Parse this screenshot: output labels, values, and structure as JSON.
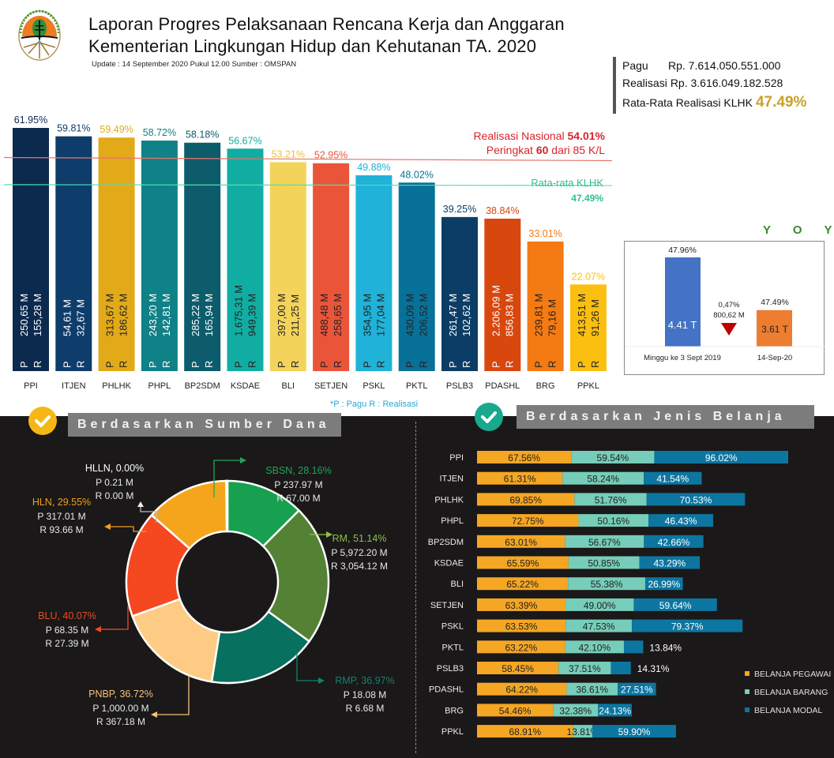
{
  "header": {
    "title_line1": "Laporan Progres Pelaksanaan Rencana Kerja dan Anggaran",
    "title_line2": "Kementerian Lingkungan Hidup dan Kehutanan TA. 2020",
    "update": "Update : 14 September 2020 Pukul 12.00  Sumber : OMSPAN",
    "logo": "klhk-logo-icon"
  },
  "summary": {
    "pagu_label": "Pagu",
    "pagu_value": "Rp. 7.614.050.551.000",
    "realisasi_label": "Realisasi",
    "realisasi_value": "Rp. 3.616.049.182.528",
    "avg_label": "Rata-Rata Realisasi KLHK",
    "avg_value": "47.49%"
  },
  "colors": {
    "national_line": "#e8766a",
    "klhk_line": "#4fe0b0",
    "dark_bg": "#1a1818",
    "pegawai": "#f5a623",
    "barang": "#76cdb9",
    "modal": "#0d76a0"
  },
  "chart_data": [
    {
      "id": "realisasi-per-eselon",
      "type": "bar",
      "title": "",
      "categories": [
        "PPI",
        "ITJEN",
        "PHLHK",
        "PHPL",
        "BP2SDM",
        "KSDAE",
        "BLI",
        "SETJEN",
        "PSKL",
        "PKTL",
        "PSLB3",
        "PDASHL",
        "BRG",
        "PPKL"
      ],
      "values": [
        61.95,
        59.81,
        59.49,
        58.72,
        58.18,
        56.67,
        53.21,
        52.95,
        49.88,
        48.02,
        39.25,
        38.84,
        33.01,
        22.07
      ],
      "value_labels": [
        "61.95%",
        "59.81%",
        "59.49%",
        "58.72%",
        "58.18%",
        "56.67%",
        "53.21%",
        "52.95%",
        "49.88%",
        "48.02%",
        "39.25%",
        "38.84%",
        "33.01%",
        "22.07%"
      ],
      "pagu": [
        "250,65 M",
        "54,61 M",
        "313,67 M",
        "243,20 M",
        "285,22 M",
        "1.675,31 M",
        "397,00 M",
        "488,48 M",
        "354,95 M",
        "430,09 M",
        "261,47 M",
        "2.206,09 M",
        "239,81 M",
        "413,51 M"
      ],
      "realisasi": [
        "155,28 M",
        "32,67 M",
        "186,62 M",
        "142,81 M",
        "165,94 M",
        "949,39 M",
        "211,25 M",
        "258,65 M",
        "177,04 M",
        "206,52 M",
        "102,62 M",
        "856,83 M",
        "79,16 M",
        "91,26 M"
      ],
      "bar_colors": [
        "#0c2a4e",
        "#0e3d6c",
        "#e2a919",
        "#0f8187",
        "#0c5c6b",
        "#12ada2",
        "#f3d35a",
        "#ea553a",
        "#20b2d8",
        "#087199",
        "#0c3d66",
        "#d8470e",
        "#f47a13",
        "#fbbf10"
      ],
      "label_colors": [
        "#0c2a4e",
        "#0e3d6c",
        "#e2a919",
        "#0f8187",
        "#0c5c6b",
        "#12ada2",
        "#f0c230",
        "#ea553a",
        "#20b2d8",
        "#087199",
        "#0c3d66",
        "#d8470e",
        "#f47a13",
        "#fbbf10"
      ],
      "inner_text_colors": [
        "#ffffff",
        "#ffffff",
        "#222222",
        "#ffffff",
        "#ffffff",
        "#222222",
        "#222222",
        "#222222",
        "#222222",
        "#222222",
        "#ffffff",
        "#ffffff",
        "#222222",
        "#222222"
      ],
      "p_letter": "P",
      "r_letter": "R",
      "ylim": [
        0,
        65
      ],
      "reference_lines": [
        {
          "name": "Realisasi Nasional",
          "value": 54.01,
          "text1": "Realisasi Nasional ",
          "text1_bold": "54.01%",
          "text2_pre": "Peringkat ",
          "text2_bold": "60",
          "text2_post": " dari 85 K/L"
        },
        {
          "name": "Rata-rata KLHK",
          "value": 47.49,
          "text1": "Rata-rata KLHK",
          "text2": "47.49%"
        }
      ],
      "footnote": "*P : Pagu     R : Realisasi"
    },
    {
      "id": "yoy",
      "type": "bar",
      "title": "Y O Y",
      "categories": [
        "Minggu ke 3 Sept 2019",
        "14-Sep-20"
      ],
      "values": [
        4.41,
        3.61
      ],
      "value_labels": [
        "4.41 T",
        "3.61 T"
      ],
      "pct_labels": [
        "47.96%",
        "47.49%"
      ],
      "colors": [
        "#4472c4",
        "#ed7d31"
      ],
      "change_pct": "0,47%",
      "change_amount": "800,62 M",
      "change_direction": "down"
    },
    {
      "id": "sumber-dana",
      "type": "pie",
      "title": "Berdasarkan Sumber Dana",
      "slices": [
        {
          "name": "SBSN",
          "label": "SBSN, 28.16%",
          "pct": 28.16,
          "p": "P 237.97 M",
          "r": "R   67.00 M",
          "color": "#16a04f",
          "label_color": "#1fa55a",
          "share": 12.5
        },
        {
          "name": "RM",
          "label": "RM, 51.14%",
          "pct": 51.14,
          "p": "P 5,972.20 M",
          "r": "R 3,054.12 M",
          "color": "#548235",
          "label_color": "#8cc04a",
          "share": 22.5
        },
        {
          "name": "RMP",
          "label": "RMP, 36.97%",
          "pct": 36.97,
          "p": "P 18.08 M",
          "r": "R   6.68 M",
          "color": "#07705f",
          "label_color": "#12826e",
          "share": 17.5
        },
        {
          "name": "PNBP",
          "label": "PNBP, 36.72%",
          "pct": 36.72,
          "p": "P 1,000.00 M",
          "r": "R    367.18 M",
          "color": "#fdcb84",
          "label_color": "#f3c27a",
          "share": 17.0
        },
        {
          "name": "BLU",
          "label": "BLU, 40.07%",
          "pct": 40.07,
          "p": "P 68.35 M",
          "r": "R 27.39 M",
          "color": "#f54720",
          "label_color": "#f04a24",
          "share": 17.0
        },
        {
          "name": "HLN",
          "label": "HLN, 29.55%",
          "pct": 29.55,
          "p": "P 317.01 M",
          "r": "R   93.66 M",
          "color": "#f5a51c",
          "label_color": "#f0a020",
          "share": 13.3
        },
        {
          "name": "HLLN",
          "label": "HLLN, 0.00%",
          "pct": 0.0,
          "p": "P 0.21 M",
          "r": "R 0.00 M",
          "color": "#ffffff",
          "label_color": "#ffffff",
          "share": 0.2
        }
      ]
    },
    {
      "id": "jenis-belanja",
      "type": "bar",
      "orientation": "horizontal-stacked",
      "title": "Berdasarkan Jenis Belanja",
      "categories": [
        "PPI",
        "ITJEN",
        "PHLHK",
        "PHPL",
        "BP2SDM",
        "KSDAE",
        "BLI",
        "SETJEN",
        "PSKL",
        "PKTL",
        "PSLB3",
        "PDASHL",
        "BRG",
        "PPKL"
      ],
      "series": [
        {
          "name": "BELANJA PEGAWAI",
          "color": "#f5a623",
          "values": [
            67.56,
            61.31,
            69.85,
            72.75,
            63.01,
            65.59,
            65.22,
            63.39,
            63.53,
            63.22,
            58.45,
            64.22,
            54.46,
            68.91
          ]
        },
        {
          "name": "BELANJA BARANG",
          "color": "#76cdb9",
          "values": [
            59.54,
            58.24,
            51.76,
            50.16,
            56.67,
            50.85,
            55.38,
            49.0,
            47.53,
            42.1,
            37.51,
            36.61,
            32.38,
            13.81
          ]
        },
        {
          "name": "BELANJA MODAL",
          "color": "#0d76a0",
          "values": [
            96.02,
            41.54,
            70.53,
            46.43,
            42.66,
            43.29,
            26.99,
            59.64,
            79.37,
            13.84,
            14.31,
            27.51,
            24.13,
            59.9
          ]
        }
      ],
      "legend": "right"
    }
  ]
}
